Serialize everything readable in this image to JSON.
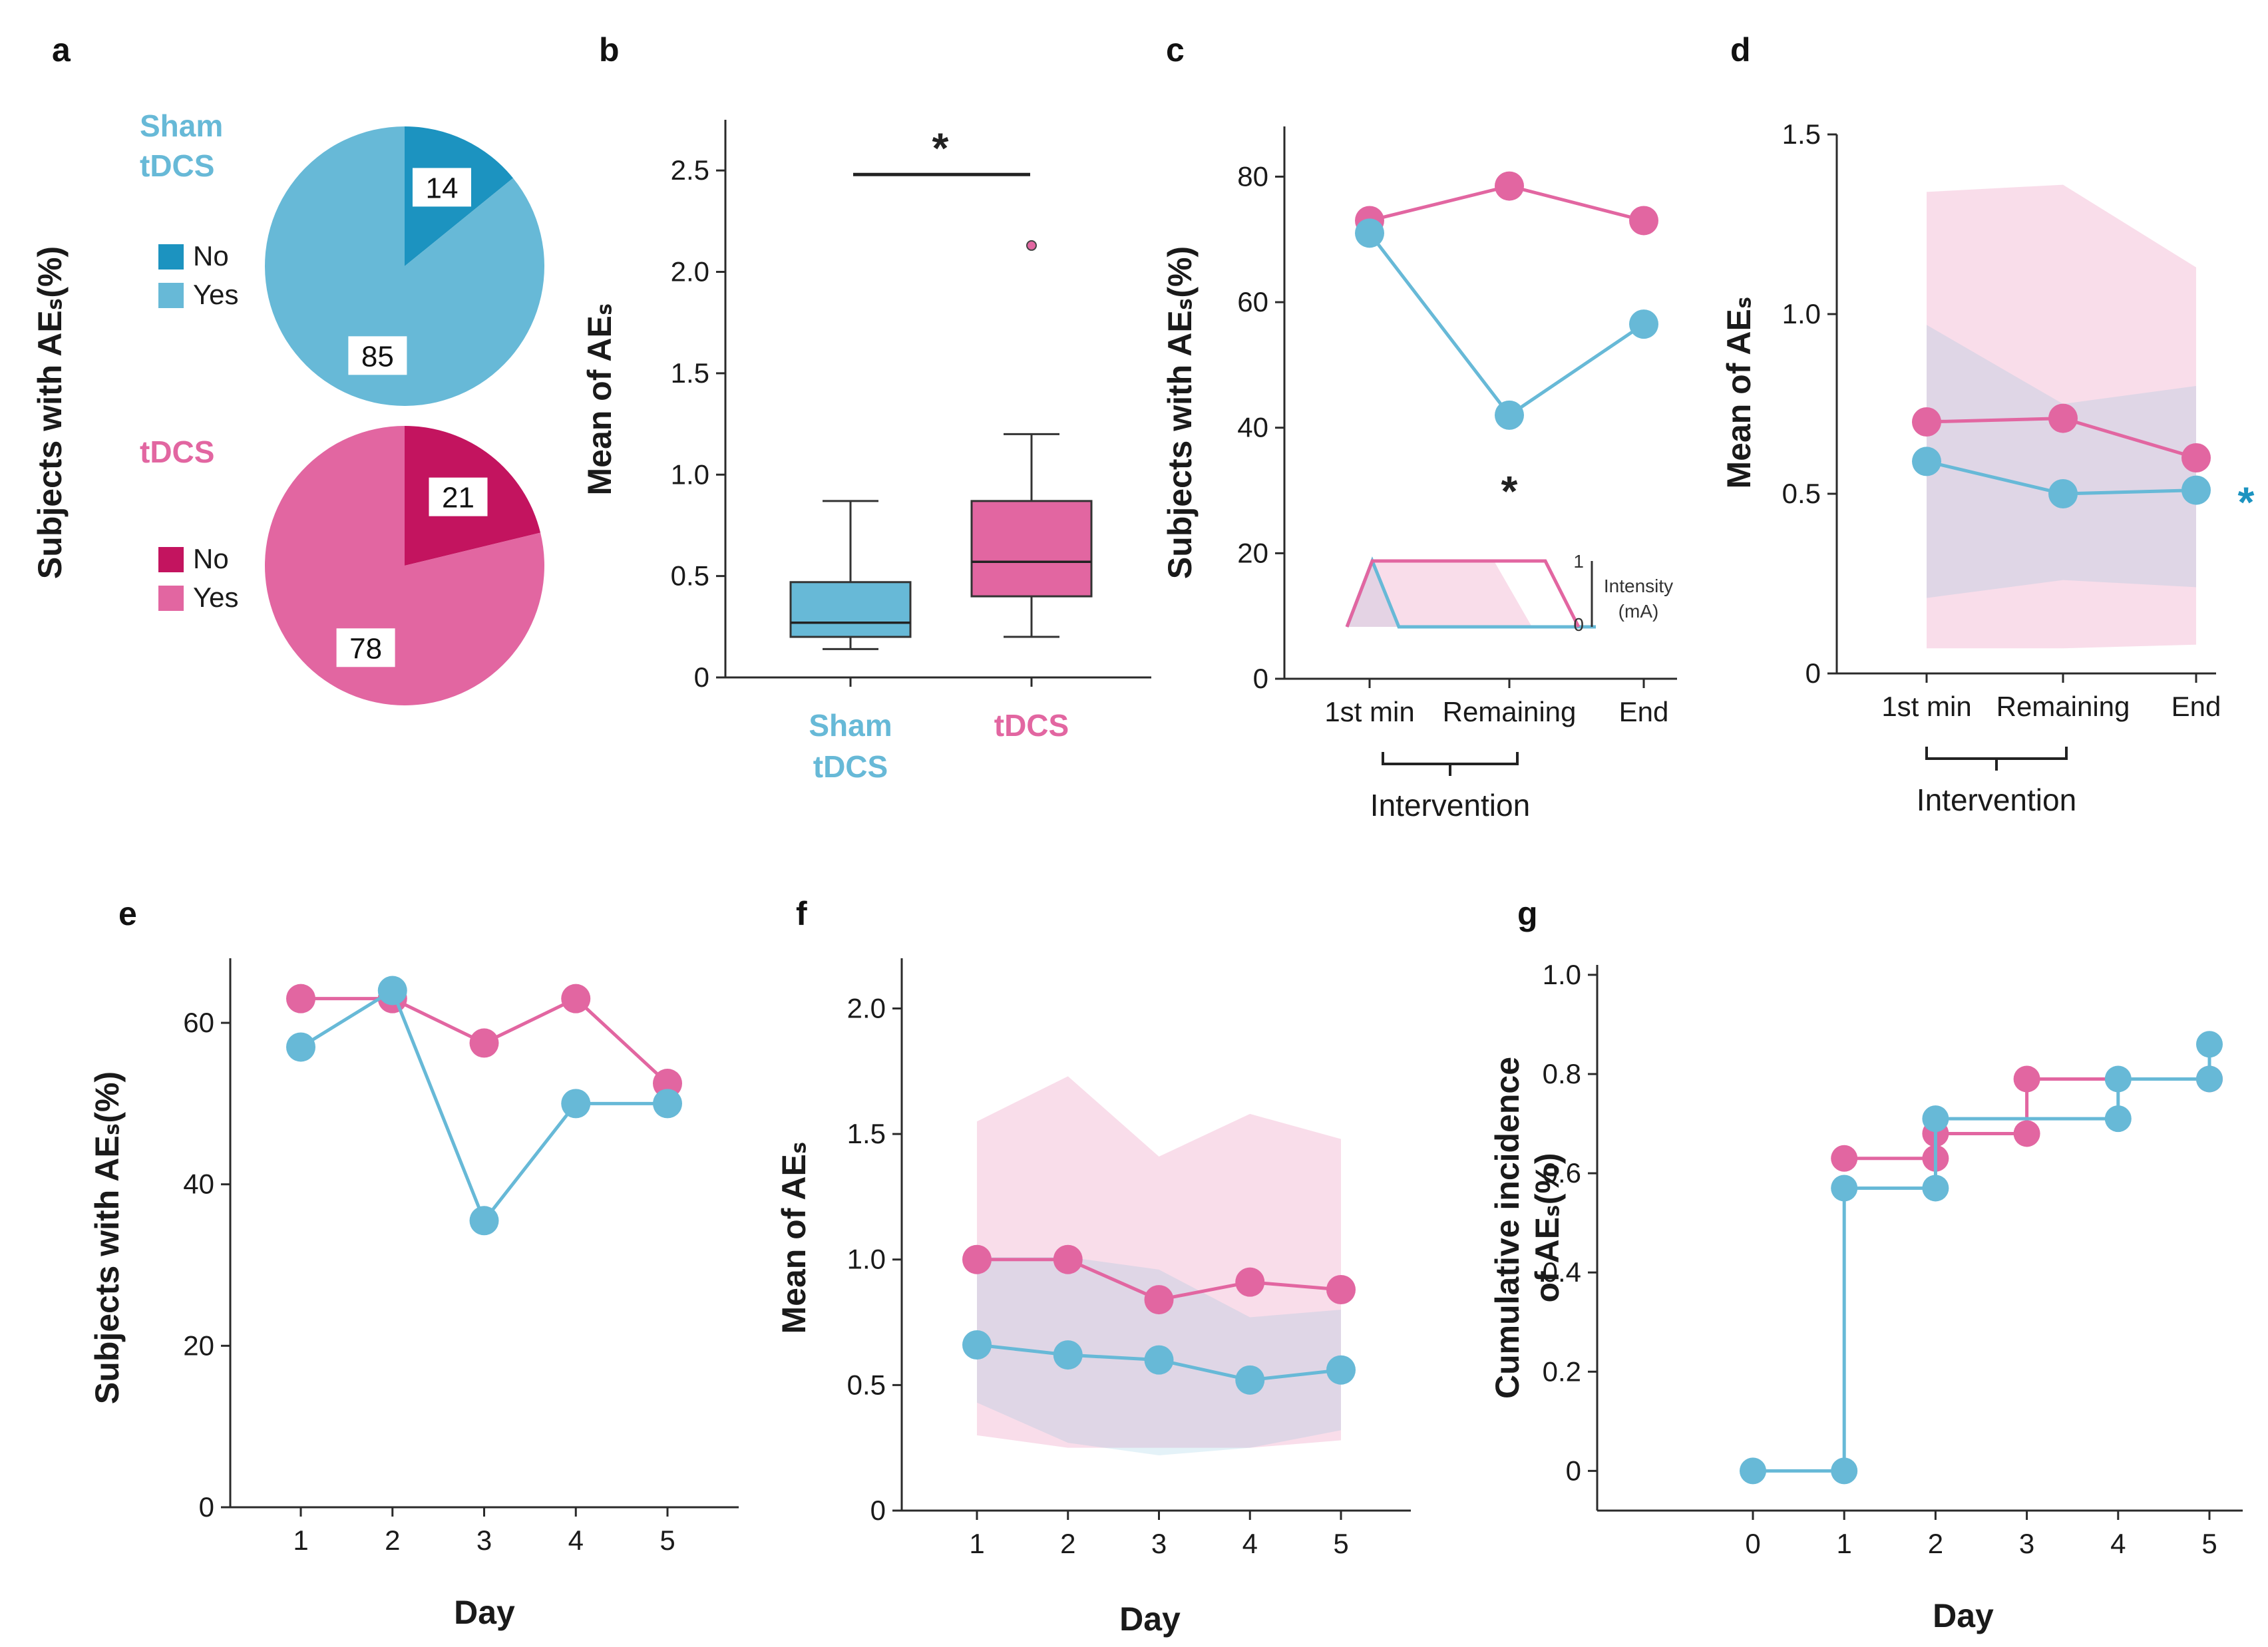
{
  "colors": {
    "sham": "#67B9D7",
    "sham_dark": "#1C93C0",
    "tdcs": "#E266A1",
    "tdcs_dark": "#C3145F",
    "sham_fill": "rgba(103,185,215,0.18)",
    "tdcs_fill": "rgba(226,102,161,0.22)"
  },
  "star": "*",
  "panels": {
    "a": {
      "label": "a",
      "ylabel": "Subjects with AEₛ(%)"
    },
    "b": {
      "label": "b"
    },
    "c": {
      "label": "c"
    },
    "d": {
      "label": "d"
    },
    "e": {
      "label": "e"
    },
    "f": {
      "label": "f"
    },
    "g": {
      "label": "g"
    }
  },
  "chart_data": [
    {
      "id": "a",
      "type": "pie",
      "ylabel": "Subjects with AEₛ(%)",
      "pies": [
        {
          "title_line1": "Sham",
          "title_line2": "tDCS",
          "slices": [
            {
              "label": "No",
              "value": 14
            },
            {
              "label": "Yes",
              "value": 85
            }
          ]
        },
        {
          "title_line1": "tDCS",
          "title_line2": "",
          "slices": [
            {
              "label": "No",
              "value": 21
            },
            {
              "label": "Yes",
              "value": 78
            }
          ]
        }
      ]
    },
    {
      "id": "b",
      "type": "box",
      "ylabel": "Mean of AEₛ",
      "ylim": [
        0,
        2.75
      ],
      "yticks": [
        0,
        0.5,
        1.0,
        1.5,
        2.0,
        2.5
      ],
      "ytick_labels": [
        "0",
        "0.5",
        "1.0",
        "1.5",
        "2.0",
        "2.5"
      ],
      "groups": [
        {
          "label_line1": "Sham",
          "label_line2": "tDCS",
          "min": 0.14,
          "q1": 0.2,
          "median": 0.27,
          "q3": 0.47,
          "max": 0.87,
          "outliers": []
        },
        {
          "label_line1": "tDCS",
          "label_line2": "",
          "min": 0.2,
          "q1": 0.4,
          "median": 0.57,
          "q3": 0.87,
          "max": 1.2,
          "outliers": [
            2.13
          ]
        }
      ],
      "significance": {
        "y": 2.48,
        "label": "*"
      }
    },
    {
      "id": "c",
      "type": "line",
      "ylabel": "Subjects with AEₛ(%)",
      "ylim": [
        0,
        88
      ],
      "yticks": [
        0,
        20,
        40,
        60,
        80
      ],
      "categories": [
        "1st min",
        "Remaining",
        "End"
      ],
      "bracket_label": "Intervention",
      "series": [
        {
          "name": "tDCS",
          "values": [
            73,
            78.5,
            73
          ]
        },
        {
          "name": "Sham tDCS",
          "values": [
            71,
            42,
            56.5
          ]
        }
      ],
      "annotation": "*",
      "inset": {
        "label_line1": "Intensity",
        "label_line2": "(mA)",
        "tick_top": "1",
        "tick_bottom": "0"
      }
    },
    {
      "id": "d",
      "type": "line",
      "ylabel": "Mean of AEₛ",
      "ylim": [
        0,
        1.5
      ],
      "yticks": [
        0,
        0.5,
        1.0,
        1.5
      ],
      "ytick_labels": [
        "0",
        "0.5",
        "1.0",
        "1.5"
      ],
      "categories": [
        "1st min",
        "Remaining",
        "End"
      ],
      "bracket_label": "Intervention",
      "series": [
        {
          "name": "tDCS",
          "values": [
            0.7,
            0.71,
            0.6
          ],
          "lower": [
            0.07,
            0.07,
            0.08
          ],
          "upper": [
            1.34,
            1.36,
            1.13
          ]
        },
        {
          "name": "Sham tDCS",
          "values": [
            0.59,
            0.5,
            0.51
          ],
          "lower": [
            0.21,
            0.26,
            0.24
          ],
          "upper": [
            0.97,
            0.75,
            0.8
          ]
        }
      ],
      "annotation": "*"
    },
    {
      "id": "e",
      "type": "line",
      "xlabel": "Day",
      "ylabel": "Subjects with AEₛ(%)",
      "ylim": [
        0,
        68
      ],
      "yticks": [
        0,
        20,
        40,
        60
      ],
      "x": [
        1,
        2,
        3,
        4,
        5
      ],
      "series": [
        {
          "name": "tDCS",
          "values": [
            63,
            63,
            57.5,
            63,
            52.5
          ]
        },
        {
          "name": "Sham tDCS",
          "values": [
            57,
            64,
            35.5,
            50,
            50
          ]
        }
      ]
    },
    {
      "id": "f",
      "type": "line",
      "xlabel": "Day",
      "ylabel": "Mean of AEₛ",
      "ylim": [
        0,
        2.2
      ],
      "yticks": [
        0,
        0.5,
        1.0,
        1.5,
        2.0
      ],
      "ytick_labels": [
        "0",
        "0.5",
        "1.0",
        "1.5",
        "2.0"
      ],
      "x": [
        1,
        2,
        3,
        4,
        5
      ],
      "series": [
        {
          "name": "tDCS",
          "values": [
            1.0,
            1.0,
            0.84,
            0.91,
            0.88
          ],
          "lower": [
            0.3,
            0.25,
            0.25,
            0.25,
            0.28
          ],
          "upper": [
            1.55,
            1.73,
            1.41,
            1.58,
            1.48
          ]
        },
        {
          "name": "Sham tDCS",
          "values": [
            0.66,
            0.62,
            0.6,
            0.52,
            0.56
          ],
          "lower": [
            0.43,
            0.27,
            0.22,
            0.25,
            0.32
          ],
          "upper": [
            1.01,
            1.01,
            0.96,
            0.77,
            0.8
          ]
        }
      ]
    },
    {
      "id": "g",
      "type": "step",
      "xlabel": "Day",
      "ylabel_line1": "Cumulative incidence",
      "ylabel_line2": "of AEₛ(%)",
      "ylim": [
        -0.08,
        1.02
      ],
      "yticks": [
        0,
        0.2,
        0.4,
        0.6,
        0.8,
        1.0
      ],
      "ytick_labels": [
        "0",
        "0.2",
        "0.4",
        "0.6",
        "0.8",
        "1.0"
      ],
      "x": [
        0,
        1,
        2,
        3,
        4,
        5
      ],
      "series": [
        {
          "name": "tDCS",
          "points": [
            [
              1,
              0.63
            ],
            [
              2,
              0.63
            ],
            [
              2,
              0.68
            ],
            [
              3,
              0.68
            ],
            [
              3,
              0.79
            ],
            [
              5,
              0.79
            ]
          ]
        },
        {
          "name": "Sham tDCS",
          "points": [
            [
              0,
              0
            ],
            [
              1,
              0
            ],
            [
              1,
              0.57
            ],
            [
              2,
              0.57
            ],
            [
              2,
              0.71
            ],
            [
              4,
              0.71
            ],
            [
              4,
              0.79
            ],
            [
              5,
              0.79
            ],
            [
              5,
              0.86
            ]
          ]
        }
      ]
    }
  ]
}
